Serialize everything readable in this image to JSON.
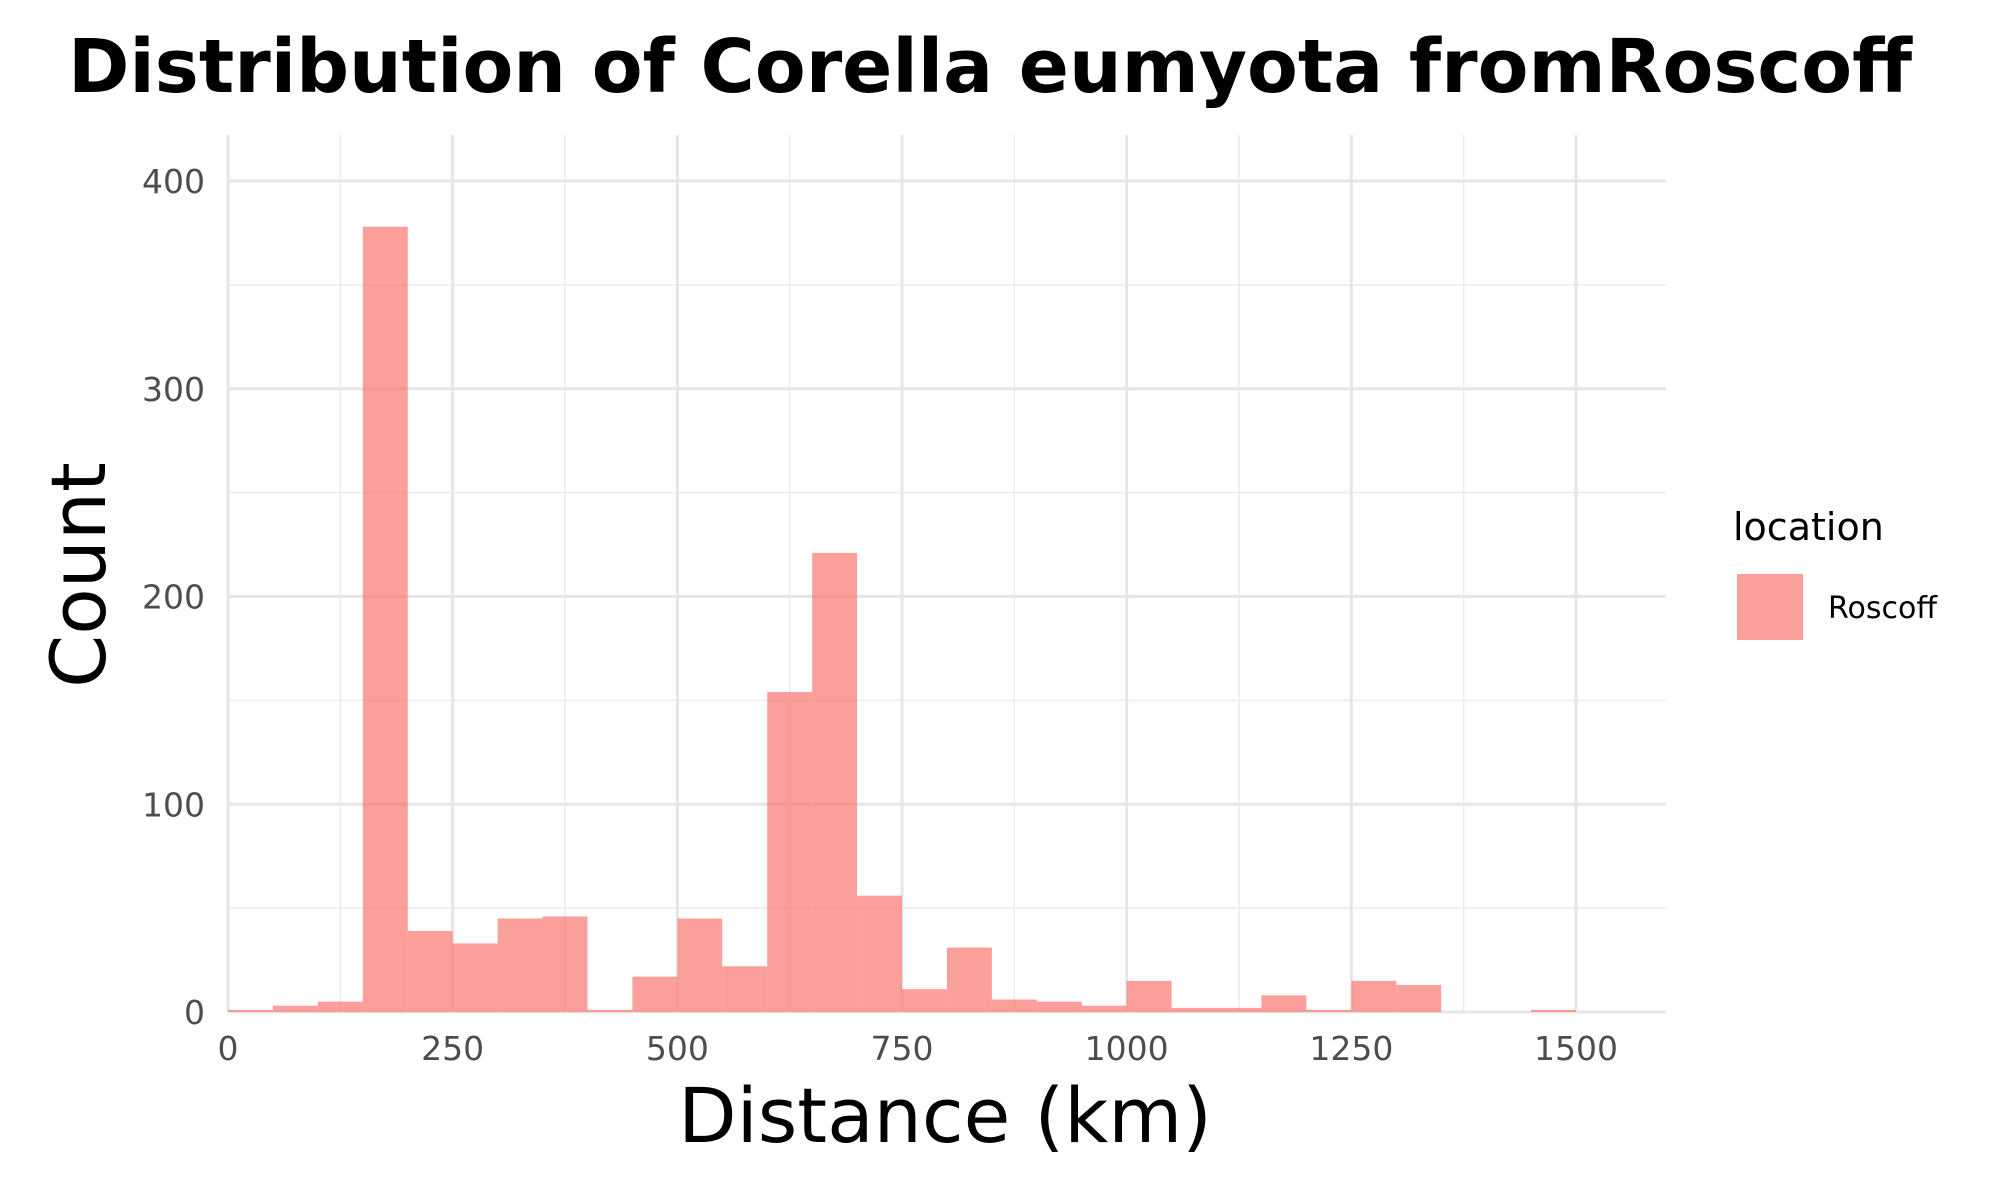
{
  "chart_data": {
    "type": "histogram",
    "title": "Distribution of Corella eumyota fromRoscoff",
    "xlabel": "Distance (km)",
    "ylabel": "Count",
    "xlim": [
      0,
      1600
    ],
    "ylim": [
      0,
      420
    ],
    "xticks": [
      0,
      250,
      500,
      750,
      1000,
      1250,
      1500
    ],
    "yticks": [
      0,
      100,
      200,
      300,
      400
    ],
    "grid": true,
    "bin_width": 50,
    "series": [
      {
        "name": "Roscoff",
        "color": "#F8766D",
        "bins": [
          {
            "start": 0,
            "end": 50,
            "count": 1
          },
          {
            "start": 50,
            "end": 100,
            "count": 3
          },
          {
            "start": 100,
            "end": 150,
            "count": 5
          },
          {
            "start": 150,
            "end": 200,
            "count": 378
          },
          {
            "start": 200,
            "end": 250,
            "count": 39
          },
          {
            "start": 250,
            "end": 300,
            "count": 33
          },
          {
            "start": 300,
            "end": 350,
            "count": 45
          },
          {
            "start": 350,
            "end": 400,
            "count": 46
          },
          {
            "start": 400,
            "end": 450,
            "count": 1
          },
          {
            "start": 450,
            "end": 500,
            "count": 17
          },
          {
            "start": 500,
            "end": 550,
            "count": 45
          },
          {
            "start": 550,
            "end": 600,
            "count": 22
          },
          {
            "start": 600,
            "end": 650,
            "count": 154
          },
          {
            "start": 650,
            "end": 700,
            "count": 221
          },
          {
            "start": 700,
            "end": 750,
            "count": 56
          },
          {
            "start": 750,
            "end": 800,
            "count": 11
          },
          {
            "start": 800,
            "end": 850,
            "count": 31
          },
          {
            "start": 850,
            "end": 900,
            "count": 6
          },
          {
            "start": 900,
            "end": 950,
            "count": 5
          },
          {
            "start": 950,
            "end": 1000,
            "count": 3
          },
          {
            "start": 1000,
            "end": 1050,
            "count": 15
          },
          {
            "start": 1050,
            "end": 1100,
            "count": 2
          },
          {
            "start": 1100,
            "end": 1150,
            "count": 2
          },
          {
            "start": 1150,
            "end": 1200,
            "count": 8
          },
          {
            "start": 1200,
            "end": 1250,
            "count": 1
          },
          {
            "start": 1250,
            "end": 1300,
            "count": 15
          },
          {
            "start": 1300,
            "end": 1350,
            "count": 13
          },
          {
            "start": 1350,
            "end": 1400,
            "count": 0
          },
          {
            "start": 1400,
            "end": 1450,
            "count": 0
          },
          {
            "start": 1450,
            "end": 1500,
            "count": 1
          },
          {
            "start": 1500,
            "end": 1550,
            "count": 0
          }
        ]
      }
    ],
    "legend": {
      "title": "location",
      "position": "right",
      "entries": [
        {
          "label": "Roscoff",
          "color": "#F8766D"
        }
      ]
    }
  }
}
